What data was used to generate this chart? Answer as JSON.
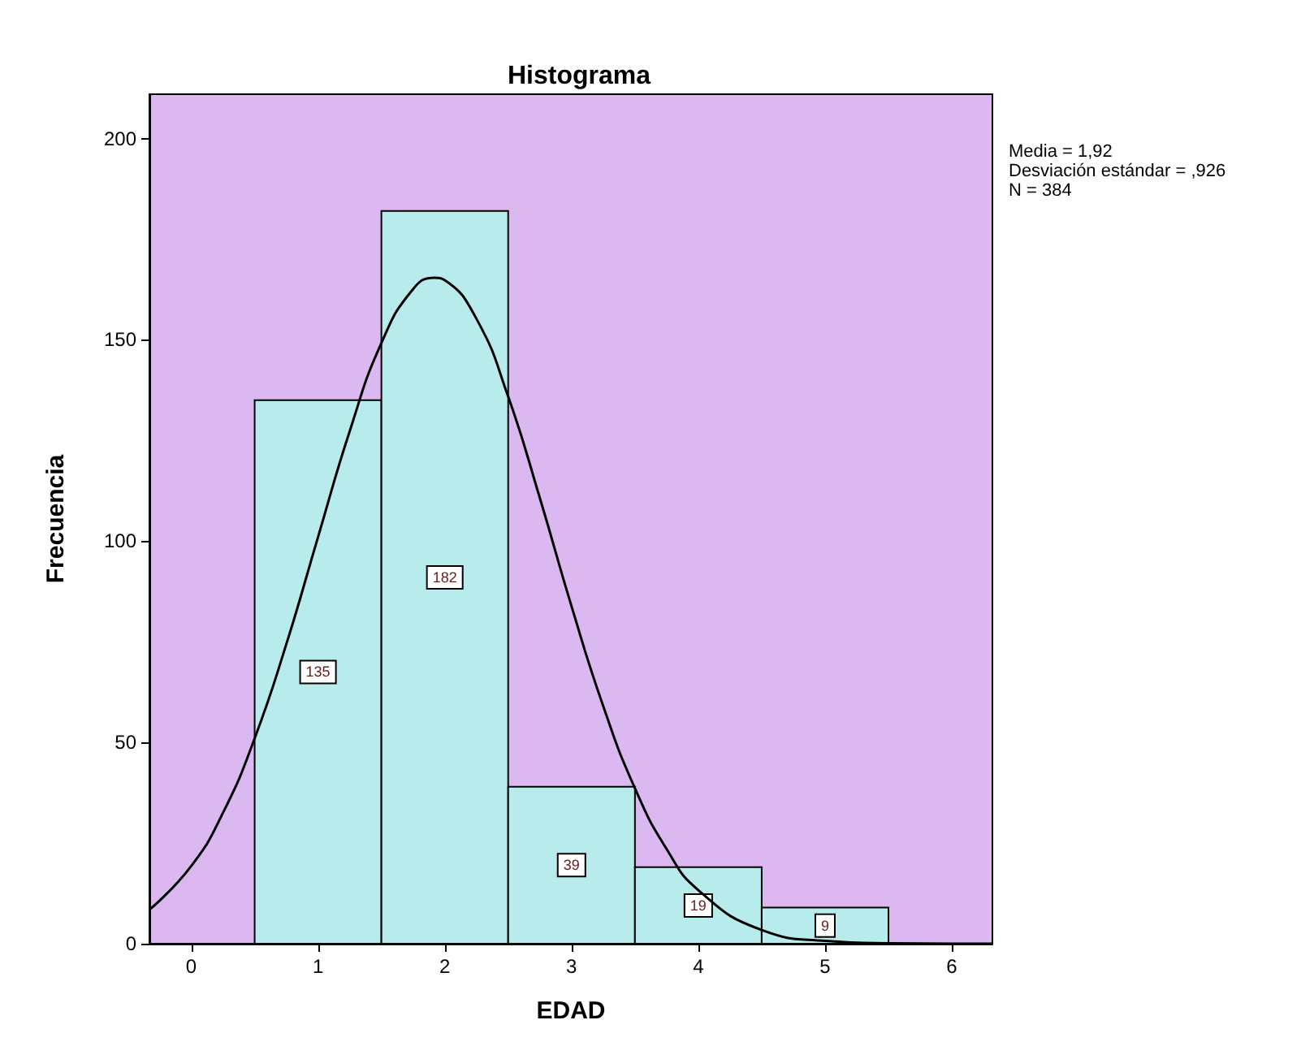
{
  "chart_data": {
    "type": "histogram",
    "title": "Histograma",
    "xlabel": "EDAD",
    "ylabel": "Frecuencia",
    "bins": [
      0.5,
      1.5,
      2.5,
      3.5,
      4.5,
      5.5
    ],
    "values": [
      135,
      182,
      39,
      19,
      9
    ],
    "color": "#b8ecec",
    "value_labels": [
      "135",
      "182",
      "39",
      "19",
      "9"
    ],
    "series": [
      {
        "type": "line",
        "color": "#000000",
        "x": [
          -0.32,
          0,
          0.25,
          0.5,
          0.75,
          1,
          1.25,
          1.5,
          1.75,
          1.92,
          2,
          2.25,
          2.5,
          2.75,
          3,
          3.25,
          3.5,
          3.75,
          4,
          4.5,
          5,
          5.5,
          6,
          6.32
        ],
        "values": [
          8.7,
          19.3,
          32.5,
          51,
          74.4,
          101,
          127.3,
          149.2,
          162.6,
          165.4,
          164.8,
          155.2,
          135.9,
          110.7,
          83.8,
          59,
          38.6,
          23.5,
          13.3,
          3.4,
          0.7,
          0.1,
          0,
          0
        ]
      }
    ],
    "xlim": [
      -0.33,
      6.32
    ],
    "xticks": [
      0,
      1,
      2,
      3,
      4,
      5,
      6
    ],
    "ylim": [
      0,
      211
    ],
    "yticks": [
      0,
      50,
      100,
      150,
      200
    ],
    "grid": false,
    "annotations": [
      "Media = 1,92",
      "Desviación estándar = ,926",
      "N = 384"
    ]
  }
}
